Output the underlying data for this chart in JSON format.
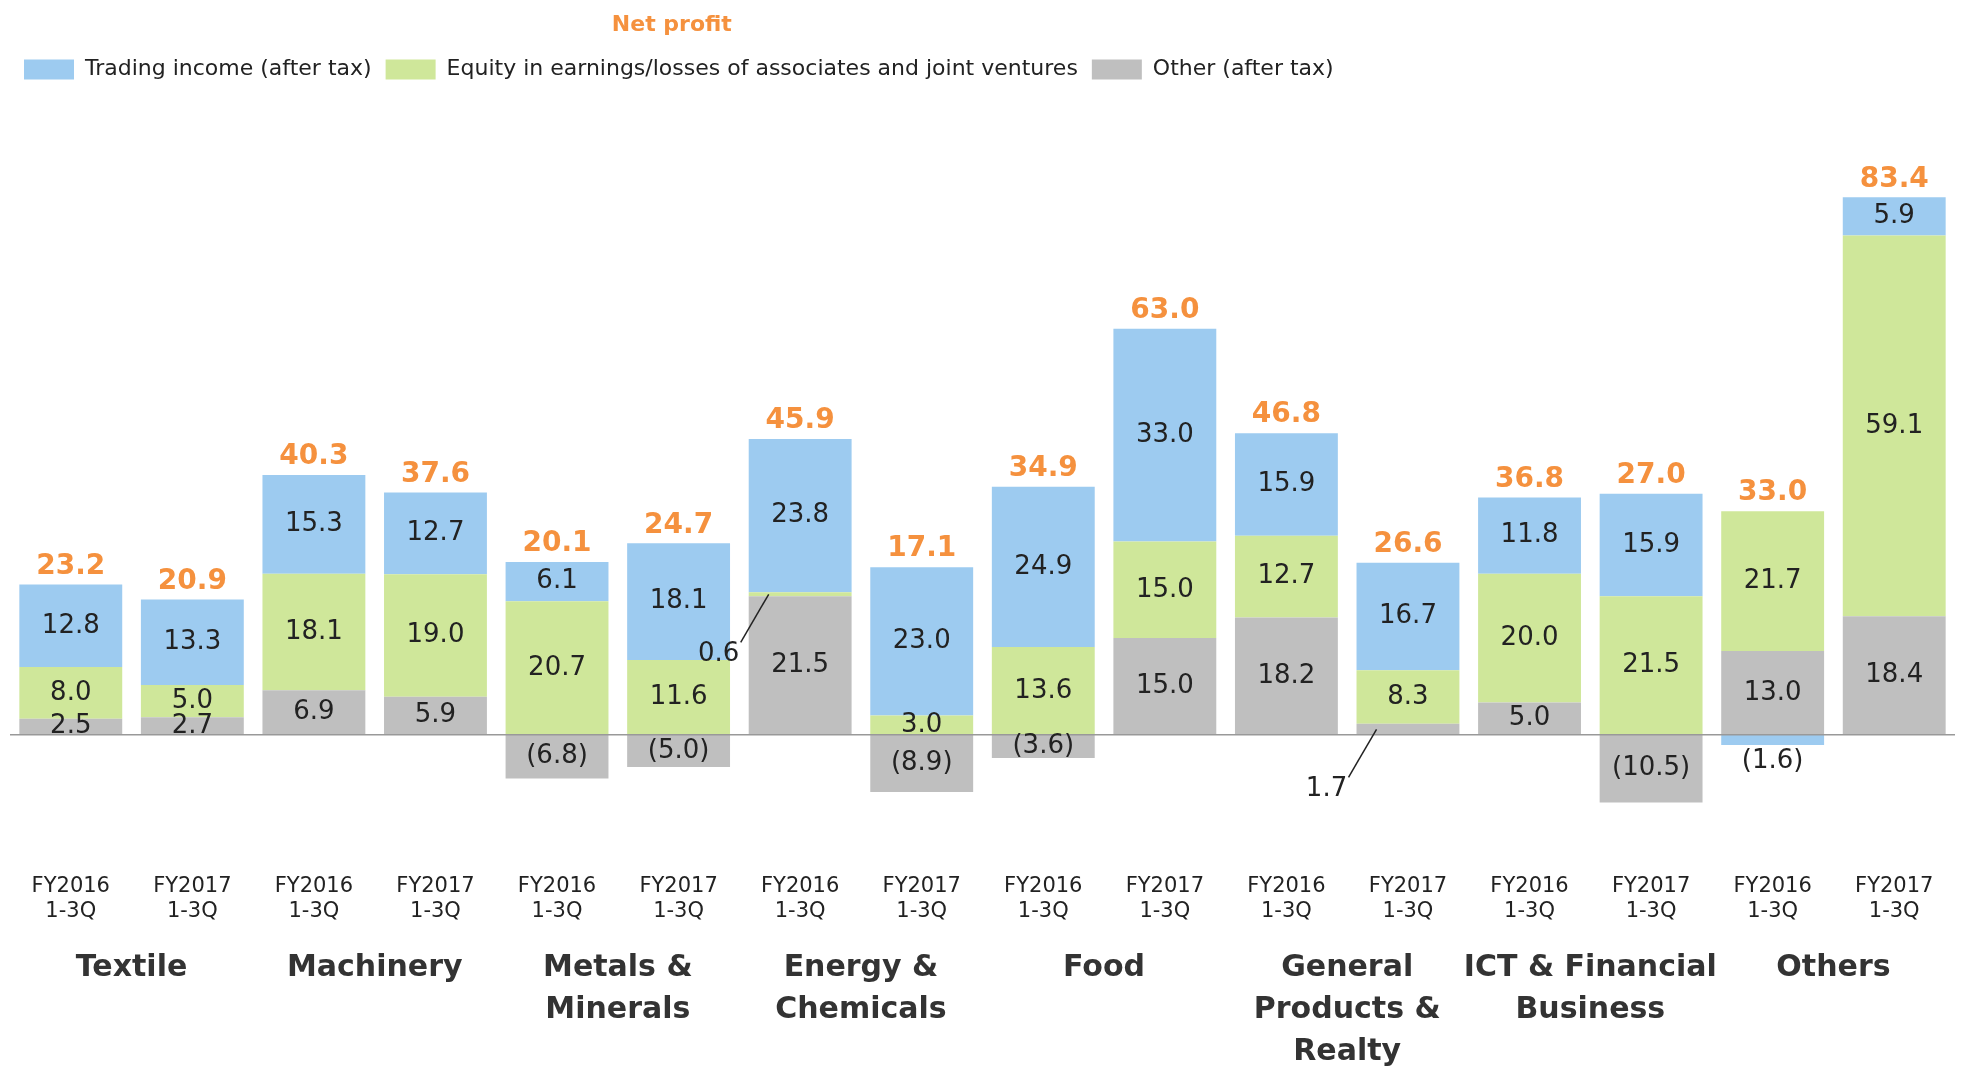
{
  "chart_data": {
    "type": "bar",
    "stacked": true,
    "legend": "top left",
    "legend_title": "Net profit",
    "categories": [
      "FY2016 1-3Q",
      "FY2017 1-3Q",
      "FY2016 1-3Q",
      "FY2017 1-3Q",
      "FY2016 1-3Q",
      "FY2017 1-3Q",
      "FY2016 1-3Q",
      "FY2017 1-3Q",
      "FY2016 1-3Q",
      "FY2017 1-3Q",
      "FY2016 1-3Q",
      "FY2017 1-3Q",
      "FY2016 1-3Q",
      "FY2017 1-3Q",
      "FY2016 1-3Q",
      "FY2017 1-3Q"
    ],
    "series": [
      {
        "name": "Other (after tax)",
        "color": "#bfbfbf",
        "values": [
          2.5,
          2.7,
          6.9,
          5.9,
          -6.8,
          -5.0,
          21.5,
          -8.9,
          -3.6,
          15.0,
          18.2,
          1.7,
          5.0,
          -10.5,
          13.0,
          18.4
        ],
        "value_labels": [
          "2.5",
          "2.7",
          "6.9",
          "5.9",
          "(6.8)",
          "(5.0)",
          "21.5",
          "(8.9)",
          "(3.6)",
          "15.0",
          "18.2",
          "1.7",
          "5.0",
          "(10.5)",
          "13.0",
          "18.4"
        ]
      },
      {
        "name": "Equity in earnings/losses of associates and joint ventures",
        "color": "#cfe79a",
        "values": [
          8.0,
          5.0,
          18.1,
          19.0,
          20.7,
          11.6,
          0.6,
          3.0,
          13.6,
          15.0,
          12.7,
          8.3,
          20.0,
          21.5,
          21.7,
          59.1
        ],
        "value_labels": [
          "8.0",
          "5.0",
          "18.1",
          "19.0",
          "20.7",
          "11.6",
          "0.6",
          "3.0",
          "13.6",
          "15.0",
          "12.7",
          "8.3",
          "20.0",
          "21.5",
          "21.7",
          "59.1"
        ]
      },
      {
        "name": "Trading income (after tax)",
        "color": "#9dcbf0",
        "values": [
          12.8,
          13.3,
          15.3,
          12.7,
          6.1,
          18.1,
          23.8,
          23.0,
          24.9,
          33.0,
          15.9,
          16.7,
          11.8,
          15.9,
          -1.6,
          5.9
        ],
        "value_labels": [
          "12.8",
          "13.3",
          "15.3",
          "12.7",
          "6.1",
          "18.1",
          "23.8",
          "23.0",
          "24.9",
          "33.0",
          "15.9",
          "16.7",
          "11.8",
          "15.9",
          "(1.6)",
          "5.9"
        ]
      }
    ],
    "totals": [
      "23.2",
      "20.9",
      "40.3",
      "37.6",
      "20.1",
      "24.7",
      "45.9",
      "17.1",
      "34.9",
      "63.0",
      "46.8",
      "26.6",
      "36.8",
      "27.0",
      "33.0",
      "83.4"
    ],
    "grid": false,
    "tick_labels": "x",
    "annotations": [
      "Textile",
      "Machinery",
      "Metals & Minerals",
      "Energy & Chemicals",
      "Food",
      "General Products & Realty",
      "ICT & Financial Business",
      "Others"
    ]
  }
}
